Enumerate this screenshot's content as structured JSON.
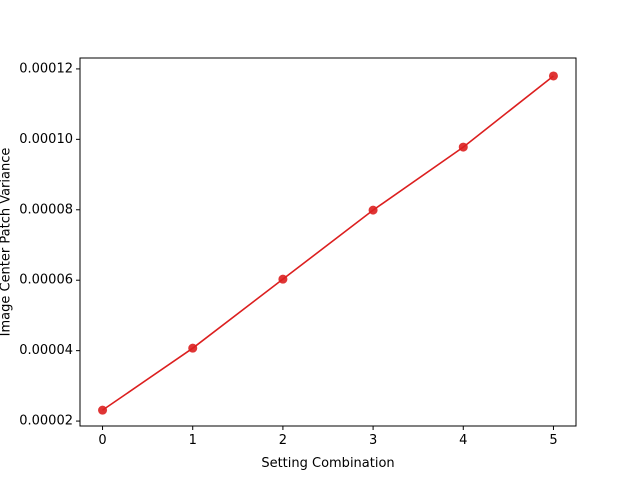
{
  "chart_data": {
    "type": "line",
    "x_label": "Setting Combination",
    "y_label": "Image Center Patch Variance",
    "x": [
      0,
      1,
      2,
      3,
      4,
      5
    ],
    "series": [
      {
        "color": "#dc1f1f",
        "values": [
          2.31e-05,
          4.07e-05,
          6.03e-05,
          7.99e-05,
          9.78e-05,
          0.000118
        ]
      }
    ],
    "xlim": [
      -0.25,
      5.25
    ],
    "ylim": [
      1.86e-05,
      0.0001231
    ],
    "xticks": [
      0,
      1,
      2,
      3,
      4,
      5
    ],
    "yticks": [
      {
        "value": 2e-05,
        "label": "0.00002"
      },
      {
        "value": 4e-05,
        "label": "0.00004"
      },
      {
        "value": 6e-05,
        "label": "0.00006"
      },
      {
        "value": 8e-05,
        "label": "0.00008"
      },
      {
        "value": 0.0001,
        "label": "0.00010"
      },
      {
        "value": 0.00012,
        "label": "0.00012"
      }
    ]
  }
}
